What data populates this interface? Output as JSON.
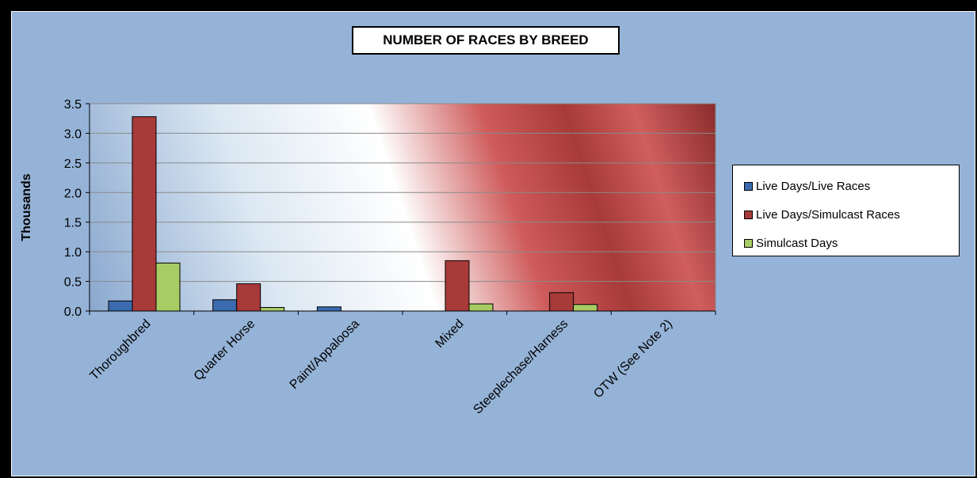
{
  "chart_data": {
    "type": "bar",
    "title": "NUMBER OF RACES BY BREED",
    "ylabel": "Thousands",
    "xlabel": "",
    "ylim": [
      0,
      3.5
    ],
    "yticks": [
      "0.0",
      "0.5",
      "1.0",
      "1.5",
      "2.0",
      "2.5",
      "3.0",
      "3.5"
    ],
    "categories": [
      "Thoroughbred",
      "Quarter Horse",
      "Paint/Appaloosa",
      "Mixed",
      "Steeplechase/Harness",
      "OTW (See Note 2)"
    ],
    "series": [
      {
        "name": "Live Days/Live Races",
        "color": "#3b6bae",
        "values": [
          0.17,
          0.19,
          0.07,
          0,
          0,
          0
        ]
      },
      {
        "name": "Live Days/Simulcast Races",
        "color": "#a83a3a",
        "values": [
          3.28,
          0.46,
          0,
          0.85,
          0.31,
          0
        ]
      },
      {
        "name": "Simulcast Days",
        "color": "#a8cc64",
        "values": [
          0.81,
          0.06,
          0,
          0.12,
          0.11,
          0
        ]
      }
    ],
    "grid": true,
    "legend": "right"
  }
}
